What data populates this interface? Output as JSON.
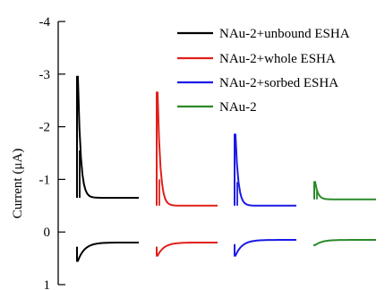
{
  "chart_data": {
    "type": "line",
    "title": "",
    "xlabel": "",
    "ylabel": "Current (μA)",
    "ylim": [
      1,
      -4
    ],
    "y_inverted": true,
    "yticks": [
      "-4",
      "-3",
      "-2",
      "-1",
      "0",
      "1"
    ],
    "ytick_values": [
      -4,
      -3,
      -2,
      -1,
      0,
      1
    ],
    "grid": false,
    "legend_position": "top-right",
    "series": [
      {
        "name": "NAu-2+unbound ESHA",
        "color": "#000000",
        "peak_negative": -2.95,
        "secondary_peak": -1.55,
        "steady_negative": -0.65,
        "peak_positive": 0.55,
        "steady_positive": 0.2
      },
      {
        "name": "NAu-2+whole ESHA",
        "color": "#e0201b",
        "peak_negative": -2.65,
        "secondary_peak": -1.0,
        "steady_negative": -0.5,
        "peak_positive": 0.45,
        "steady_positive": 0.2
      },
      {
        "name": "NAu-2+sorbed ESHA",
        "color": "#1a1ae6",
        "peak_negative": -1.85,
        "secondary_peak": -0.95,
        "steady_negative": -0.5,
        "peak_positive": 0.45,
        "steady_positive": 0.15
      },
      {
        "name": "NAu-2",
        "color": "#2a8a2a",
        "peak_negative": -0.95,
        "secondary_peak": -0.8,
        "steady_negative": -0.62,
        "peak_positive": 0.25,
        "steady_positive": 0.15
      }
    ]
  }
}
